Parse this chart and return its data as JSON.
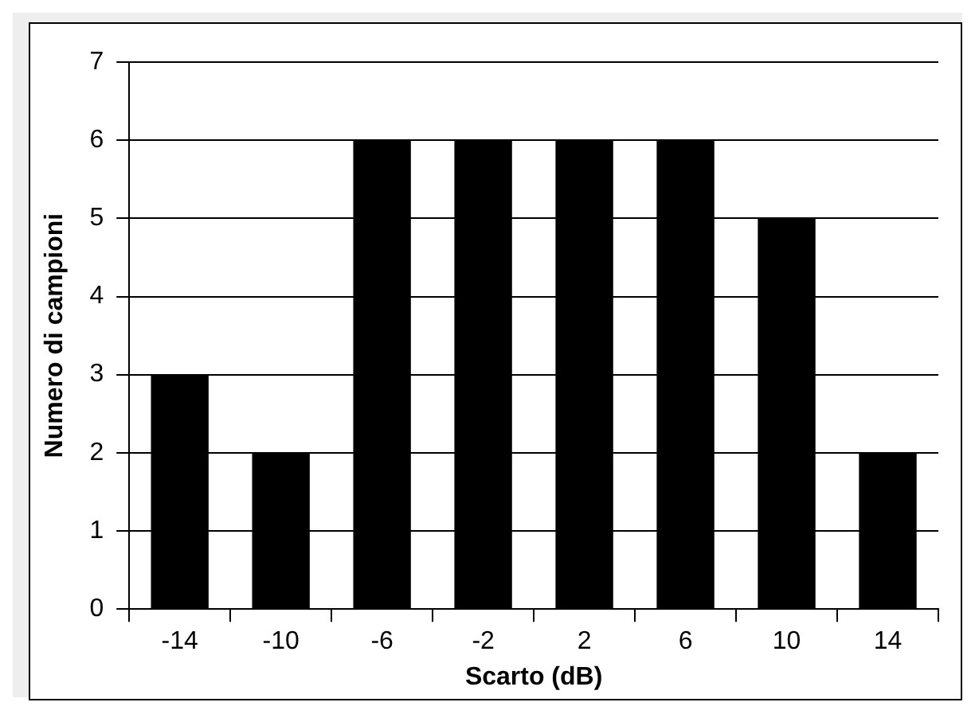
{
  "chart_data": {
    "type": "bar",
    "xlabel": "Scarto (dB)",
    "ylabel": "Numero di campioni",
    "categories": [
      "-14",
      "-10",
      "-6",
      "-2",
      "2",
      "6",
      "10",
      "14"
    ],
    "values": [
      3,
      2,
      6,
      6,
      6,
      6,
      5,
      2
    ],
    "color": "#000000",
    "ylim": [
      0,
      7
    ],
    "yticks": [
      0,
      1,
      2,
      3,
      4,
      5,
      6,
      7
    ],
    "grid": "y",
    "legend": false
  }
}
